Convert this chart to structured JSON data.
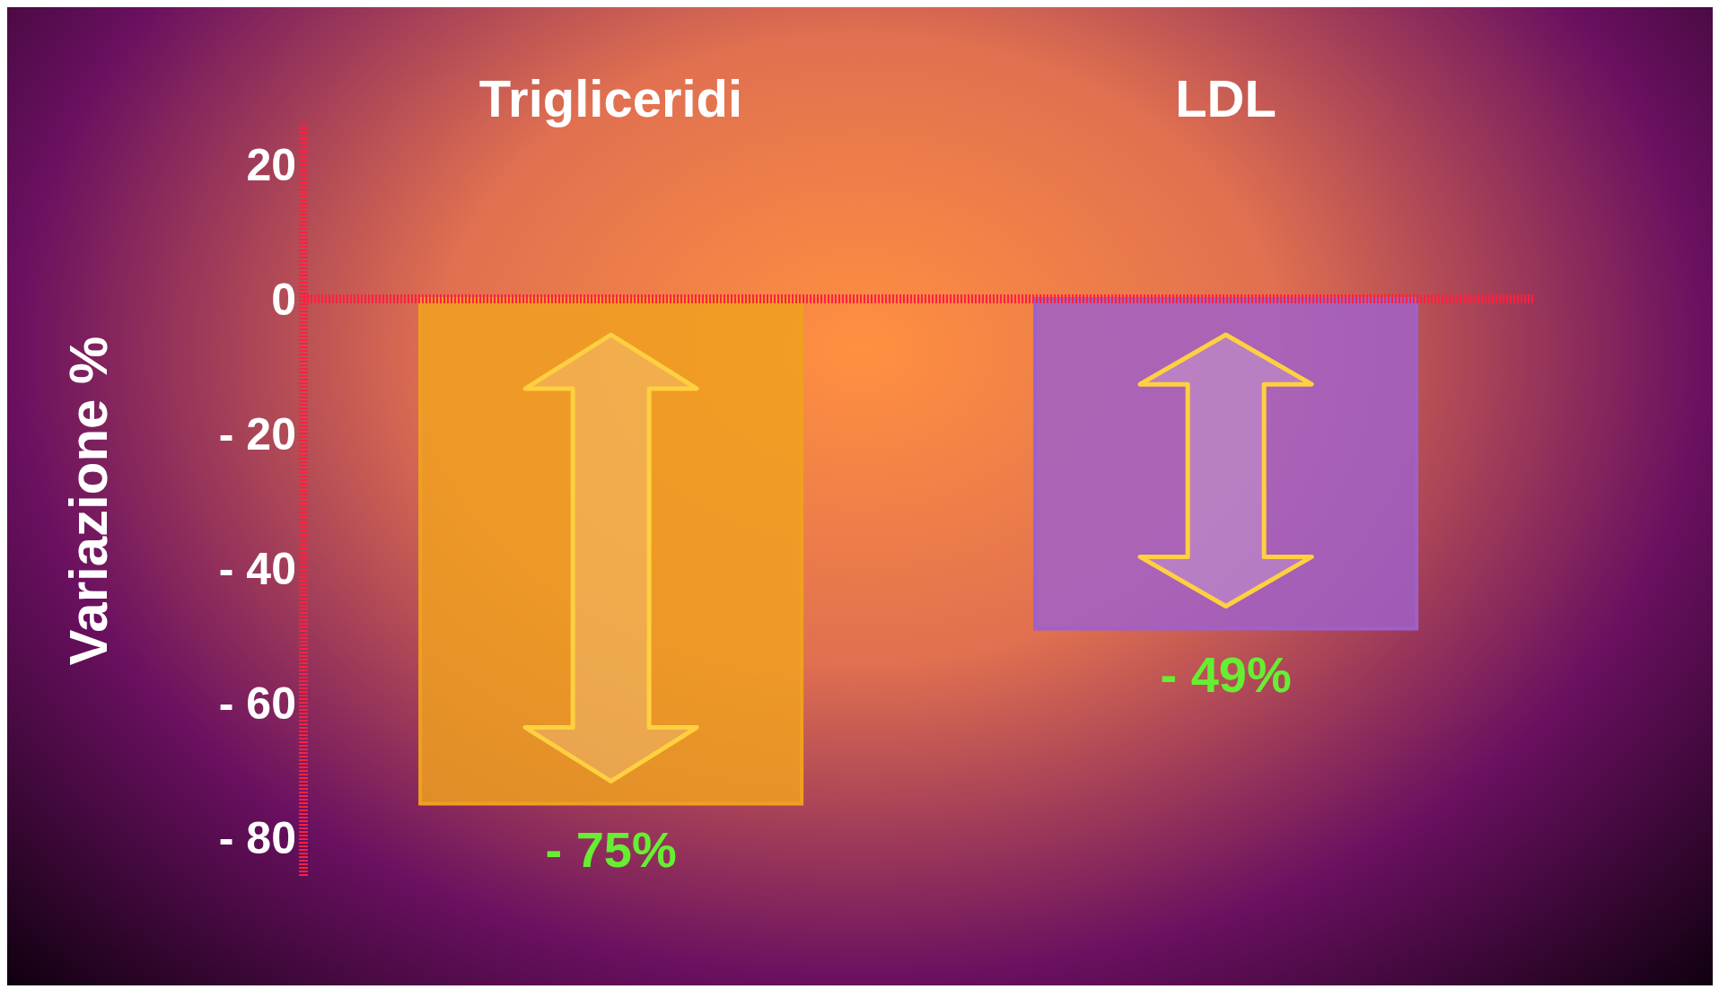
{
  "chart_data": {
    "type": "bar",
    "ylabel": "Variazione %",
    "categories": [
      "Trigliceridi",
      "LDL"
    ],
    "values": [
      -75,
      -49
    ],
    "colors": [
      "#f0a020",
      "#a060c8"
    ],
    "value_labels": [
      "- 75%",
      "- 49%"
    ],
    "ylim": [
      -86,
      26
    ],
    "yticks": [
      {
        "value": 20,
        "label": "20"
      },
      {
        "value": 0,
        "label": "0"
      },
      {
        "value": -20,
        "label": "- 20"
      },
      {
        "value": -40,
        "label": "- 40"
      },
      {
        "value": -60,
        "label": "- 60"
      },
      {
        "value": -80,
        "label": "- 80"
      }
    ],
    "ref_lines": [
      {
        "axis": "y",
        "value": 0,
        "color": "#ff2040",
        "line_style": "dotted"
      }
    ],
    "grid": false,
    "legend": false
  }
}
